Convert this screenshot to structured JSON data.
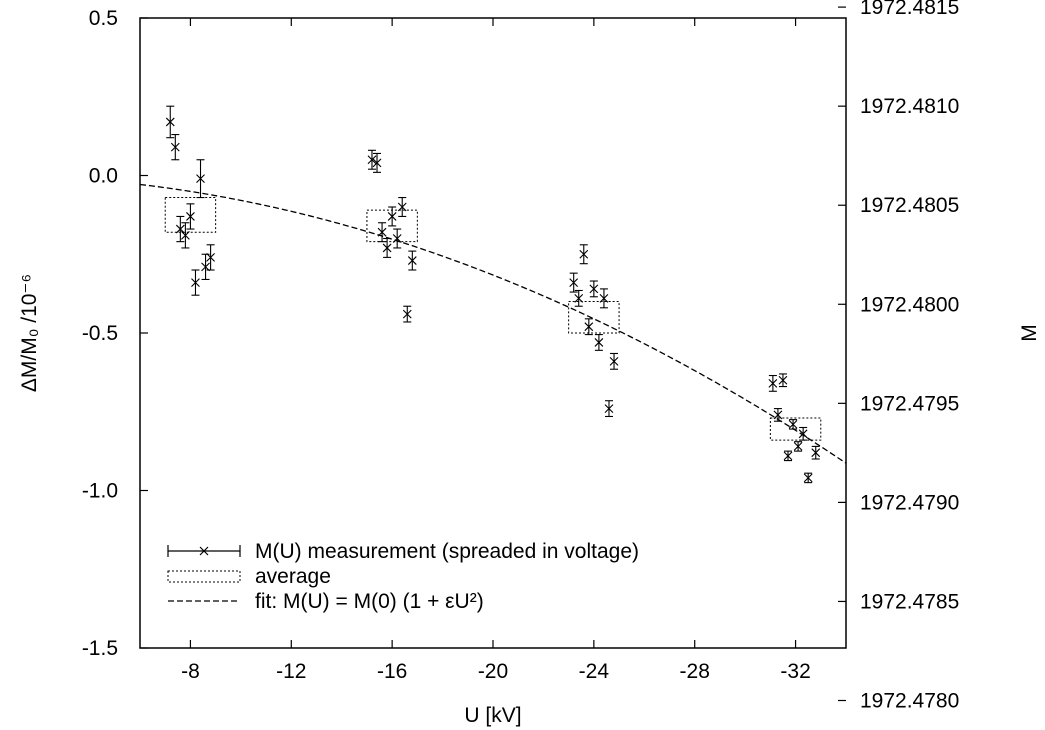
{
  "chart_data": {
    "type": "scatter",
    "xlabel": "U [kV]",
    "ylabel": "ΔM/M₀ /10⁻⁶",
    "ylabel_right": "M",
    "x_axis": {
      "range": [
        -6,
        -34
      ],
      "ticks": [
        -8,
        -12,
        -16,
        -20,
        -24,
        -28,
        -32
      ],
      "tick_labels": [
        "-8",
        "-12",
        "-16",
        "-20",
        "-24",
        "-28",
        "-32"
      ]
    },
    "y_axis": {
      "range": [
        -1.5,
        0.5
      ],
      "ticks": [
        -1.5,
        -1.0,
        -0.5,
        0.0,
        0.5
      ],
      "tick_labels": [
        "-1.5",
        "-1.0",
        "-0.5",
        "0.0",
        "0.5"
      ]
    },
    "y2_axis": {
      "ticks": [
        1972.478,
        1972.4785,
        1972.479,
        1972.4795,
        1972.48,
        1972.4805,
        1972.481,
        1972.4815
      ],
      "tick_labels": [
        "1972.4780",
        "1972.4785",
        "1972.4790",
        "1972.4795",
        "1972.4800",
        "1972.4805",
        "1972.4810",
        "1972.4815"
      ],
      "mapping": {
        "y_at_0": 1972.48065,
        "per_unit": 0.00159
      }
    },
    "series": [
      {
        "name": "M(U) measurement (spreaded in voltage)",
        "kind": "errorbar",
        "points": [
          {
            "x": -7.2,
            "y": 0.17,
            "err": 0.05
          },
          {
            "x": -7.4,
            "y": 0.09,
            "err": 0.04
          },
          {
            "x": -7.6,
            "y": -0.17,
            "err": 0.04
          },
          {
            "x": -7.8,
            "y": -0.19,
            "err": 0.04
          },
          {
            "x": -8.0,
            "y": -0.13,
            "err": 0.04
          },
          {
            "x": -8.2,
            "y": -0.34,
            "err": 0.04
          },
          {
            "x": -8.4,
            "y": -0.01,
            "err": 0.06
          },
          {
            "x": -8.6,
            "y": -0.29,
            "err": 0.04
          },
          {
            "x": -8.8,
            "y": -0.26,
            "err": 0.04
          },
          {
            "x": -15.2,
            "y": 0.05,
            "err": 0.03
          },
          {
            "x": -15.4,
            "y": 0.04,
            "err": 0.03
          },
          {
            "x": -15.6,
            "y": -0.18,
            "err": 0.03
          },
          {
            "x": -15.8,
            "y": -0.23,
            "err": 0.03
          },
          {
            "x": -16.0,
            "y": -0.13,
            "err": 0.03
          },
          {
            "x": -16.2,
            "y": -0.2,
            "err": 0.03
          },
          {
            "x": -16.4,
            "y": -0.1,
            "err": 0.03
          },
          {
            "x": -16.6,
            "y": -0.44,
            "err": 0.025
          },
          {
            "x": -16.8,
            "y": -0.27,
            "err": 0.03
          },
          {
            "x": -23.2,
            "y": -0.34,
            "err": 0.03
          },
          {
            "x": -23.4,
            "y": -0.39,
            "err": 0.025
          },
          {
            "x": -23.6,
            "y": -0.25,
            "err": 0.03
          },
          {
            "x": -23.8,
            "y": -0.48,
            "err": 0.025
          },
          {
            "x": -24.0,
            "y": -0.36,
            "err": 0.025
          },
          {
            "x": -24.2,
            "y": -0.53,
            "err": 0.025
          },
          {
            "x": -24.4,
            "y": -0.39,
            "err": 0.03
          },
          {
            "x": -24.6,
            "y": -0.74,
            "err": 0.025
          },
          {
            "x": -24.8,
            "y": -0.59,
            "err": 0.025
          },
          {
            "x": -31.1,
            "y": -0.66,
            "err": 0.025
          },
          {
            "x": -31.3,
            "y": -0.76,
            "err": 0.02
          },
          {
            "x": -31.5,
            "y": -0.65,
            "err": 0.02
          },
          {
            "x": -31.7,
            "y": -0.89,
            "err": 0.015
          },
          {
            "x": -31.9,
            "y": -0.79,
            "err": 0.015
          },
          {
            "x": -32.1,
            "y": -0.86,
            "err": 0.015
          },
          {
            "x": -32.3,
            "y": -0.82,
            "err": 0.02
          },
          {
            "x": -32.5,
            "y": -0.96,
            "err": 0.015
          },
          {
            "x": -32.8,
            "y": -0.88,
            "err": 0.02
          }
        ]
      },
      {
        "name": "average",
        "kind": "box",
        "boxes": [
          {
            "x0": -7.0,
            "x1": -9.0,
            "y0": -0.18,
            "y1": -0.07
          },
          {
            "x0": -15.0,
            "x1": -17.0,
            "y0": -0.21,
            "y1": -0.11
          },
          {
            "x0": -23.0,
            "x1": -25.0,
            "y0": -0.5,
            "y1": -0.4
          },
          {
            "x0": -31.0,
            "x1": -33.0,
            "y0": -0.84,
            "y1": -0.77
          }
        ]
      },
      {
        "name": "fit:  M(U) = M(0) (1 + εU²)",
        "kind": "fit",
        "coefficients": {
          "a": -0.00079,
          "b": 0.0
        }
      }
    ],
    "legend": {
      "placement": "bottom-left",
      "entries": [
        "M(U) measurement (spreaded in voltage)",
        "average",
        "fit:  M(U) = M(0) (1 + εU²)"
      ]
    },
    "grid": false
  }
}
